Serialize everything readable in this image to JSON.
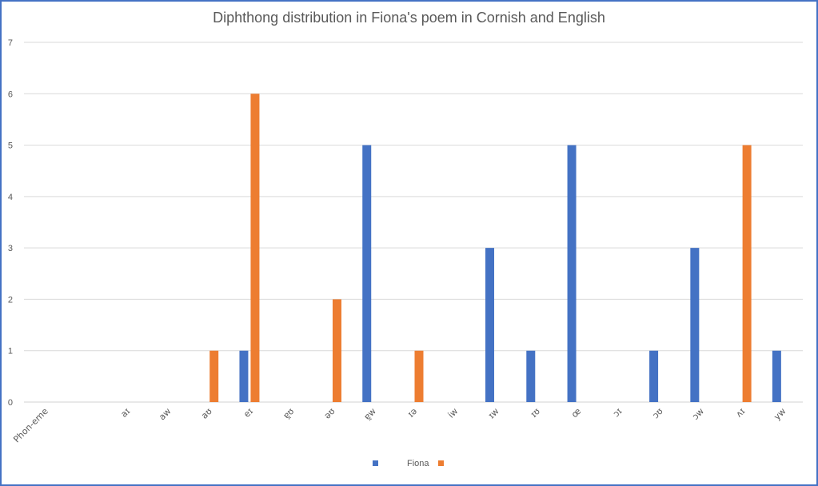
{
  "chart_data": {
    "type": "bar",
    "title": "Diphthong distribution in Fiona's poem in Cornish and English",
    "xlabel": "",
    "ylabel": "",
    "ylim": [
      0,
      7
    ],
    "yticks": [
      0,
      1,
      2,
      3,
      4,
      5,
      6,
      7
    ],
    "grid": true,
    "legend_position": "bottom",
    "categories": [
      "Phon-eme",
      "",
      "aɪ",
      "aw",
      "aʊ",
      "eɪ",
      "ɐ̯ʊ",
      "əʊ",
      "ɐ̯w",
      "ɪə",
      "iw",
      "ɪw",
      "ɪʊ",
      "œ",
      "ɔɪ",
      "ɔʊ",
      "ɔw",
      "ʌɪ",
      "yw"
    ],
    "series": [
      {
        "name": "Fiona",
        "color": "#4472c4",
        "values": [
          0,
          0,
          0,
          0,
          0,
          1,
          0,
          0,
          5,
          0,
          0,
          3,
          1,
          5,
          0,
          1,
          3,
          0,
          1
        ]
      },
      {
        "name": "",
        "color": "#ed7d31",
        "values": [
          0,
          0,
          0,
          0,
          1,
          6,
          0,
          2,
          0,
          1,
          0,
          0,
          0,
          0,
          0,
          0,
          0,
          5,
          0
        ]
      }
    ]
  }
}
